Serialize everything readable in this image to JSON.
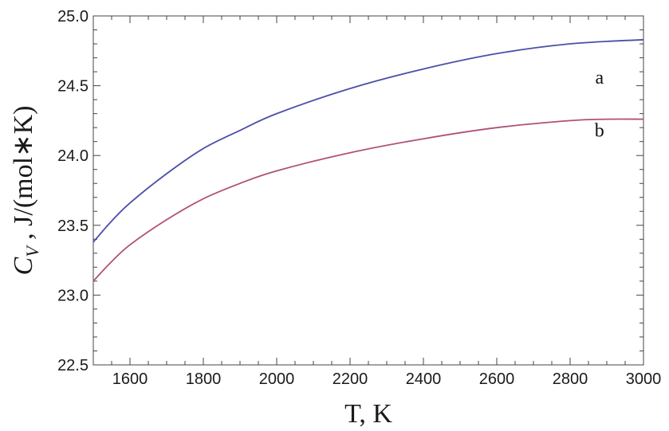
{
  "chart_data": {
    "type": "line",
    "title": "",
    "xlabel": "T, K",
    "ylabel_main": "C",
    "ylabel_sub": "V",
    "ylabel_units": " , J/(mol∗K)",
    "xlim": [
      1500,
      3000
    ],
    "ylim": [
      22.5,
      25.0
    ],
    "x_ticks": [
      1600,
      1800,
      2000,
      2200,
      2400,
      2600,
      2800,
      3000
    ],
    "y_ticks": [
      "22.5",
      "23.0",
      "23.5",
      "24.0",
      "24.5",
      "25.0"
    ],
    "grid": false,
    "series": [
      {
        "name": "a",
        "color": "#4a4fa8",
        "x": [
          1500,
          1550,
          1600,
          1700,
          1800,
          1900,
          2000,
          2200,
          2400,
          2600,
          2800,
          3000
        ],
        "y": [
          23.38,
          23.53,
          23.66,
          23.87,
          24.05,
          24.18,
          24.3,
          24.48,
          24.62,
          24.73,
          24.8,
          24.83
        ]
      },
      {
        "name": "b",
        "color": "#b0507a",
        "x": [
          1500,
          1550,
          1600,
          1700,
          1800,
          1900,
          2000,
          2200,
          2400,
          2600,
          2800,
          2900,
          3000
        ],
        "y": [
          23.1,
          23.24,
          23.36,
          23.54,
          23.69,
          23.8,
          23.89,
          24.02,
          24.12,
          24.2,
          24.25,
          24.26,
          24.26
        ]
      }
    ],
    "annotations": [
      {
        "text": "a",
        "x": 2880,
        "y": 24.56
      },
      {
        "text": "b",
        "x": 2880,
        "y": 24.18
      }
    ]
  }
}
